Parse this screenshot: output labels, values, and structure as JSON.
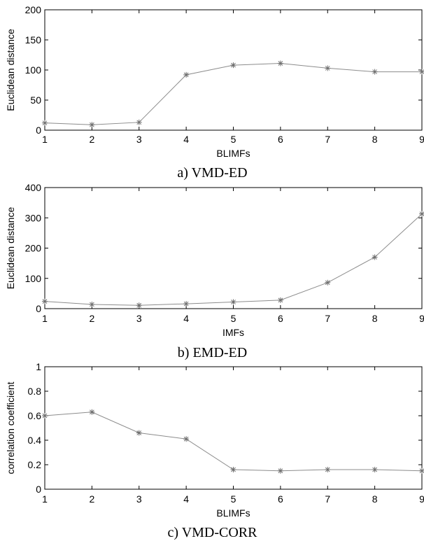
{
  "chart_data": [
    {
      "type": "line",
      "caption": "a) VMD-ED",
      "xlabel": "BLIMFs",
      "ylabel": "Euclidean distance",
      "x": [
        1,
        2,
        3,
        4,
        5,
        6,
        7,
        8,
        9
      ],
      "xlim": [
        1,
        9
      ],
      "ylim": [
        0,
        200
      ],
      "yticks": [
        0,
        50,
        100,
        150,
        200
      ],
      "xticks": [
        1,
        2,
        3,
        4,
        5,
        6,
        7,
        8,
        9
      ],
      "series": [
        {
          "values": [
            12,
            9,
            13,
            92,
            108,
            111,
            103,
            97,
            97
          ]
        }
      ],
      "marker": "asterisk",
      "grid": false,
      "color": "#8c8c8c"
    },
    {
      "type": "line",
      "caption": "b) EMD-ED",
      "xlabel": "IMFs",
      "ylabel": "Euclidean distance",
      "x": [
        1,
        2,
        3,
        4,
        5,
        6,
        7,
        8,
        9
      ],
      "xlim": [
        1,
        9
      ],
      "ylim": [
        0,
        400
      ],
      "yticks": [
        0,
        100,
        200,
        300,
        400
      ],
      "xticks": [
        1,
        2,
        3,
        4,
        5,
        6,
        7,
        8,
        9
      ],
      "series": [
        {
          "values": [
            24,
            14,
            11,
            16,
            22,
            28,
            86,
            170,
            313
          ]
        }
      ],
      "marker": "asterisk",
      "grid": false,
      "color": "#8c8c8c"
    },
    {
      "type": "line",
      "caption": "c) VMD-CORR",
      "xlabel": "BLIMFs",
      "ylabel": "correlation coefficient",
      "x": [
        1,
        2,
        3,
        4,
        5,
        6,
        7,
        8,
        9
      ],
      "xlim": [
        1,
        9
      ],
      "ylim": [
        0,
        1
      ],
      "yticks": [
        0,
        0.2,
        0.4,
        0.6,
        0.8,
        1
      ],
      "xticks": [
        1,
        2,
        3,
        4,
        5,
        6,
        7,
        8,
        9
      ],
      "series": [
        {
          "values": [
            0.6,
            0.63,
            0.46,
            0.41,
            0.16,
            0.15,
            0.16,
            0.16,
            0.15
          ]
        }
      ],
      "marker": "asterisk",
      "grid": false,
      "color": "#8c8c8c"
    }
  ]
}
